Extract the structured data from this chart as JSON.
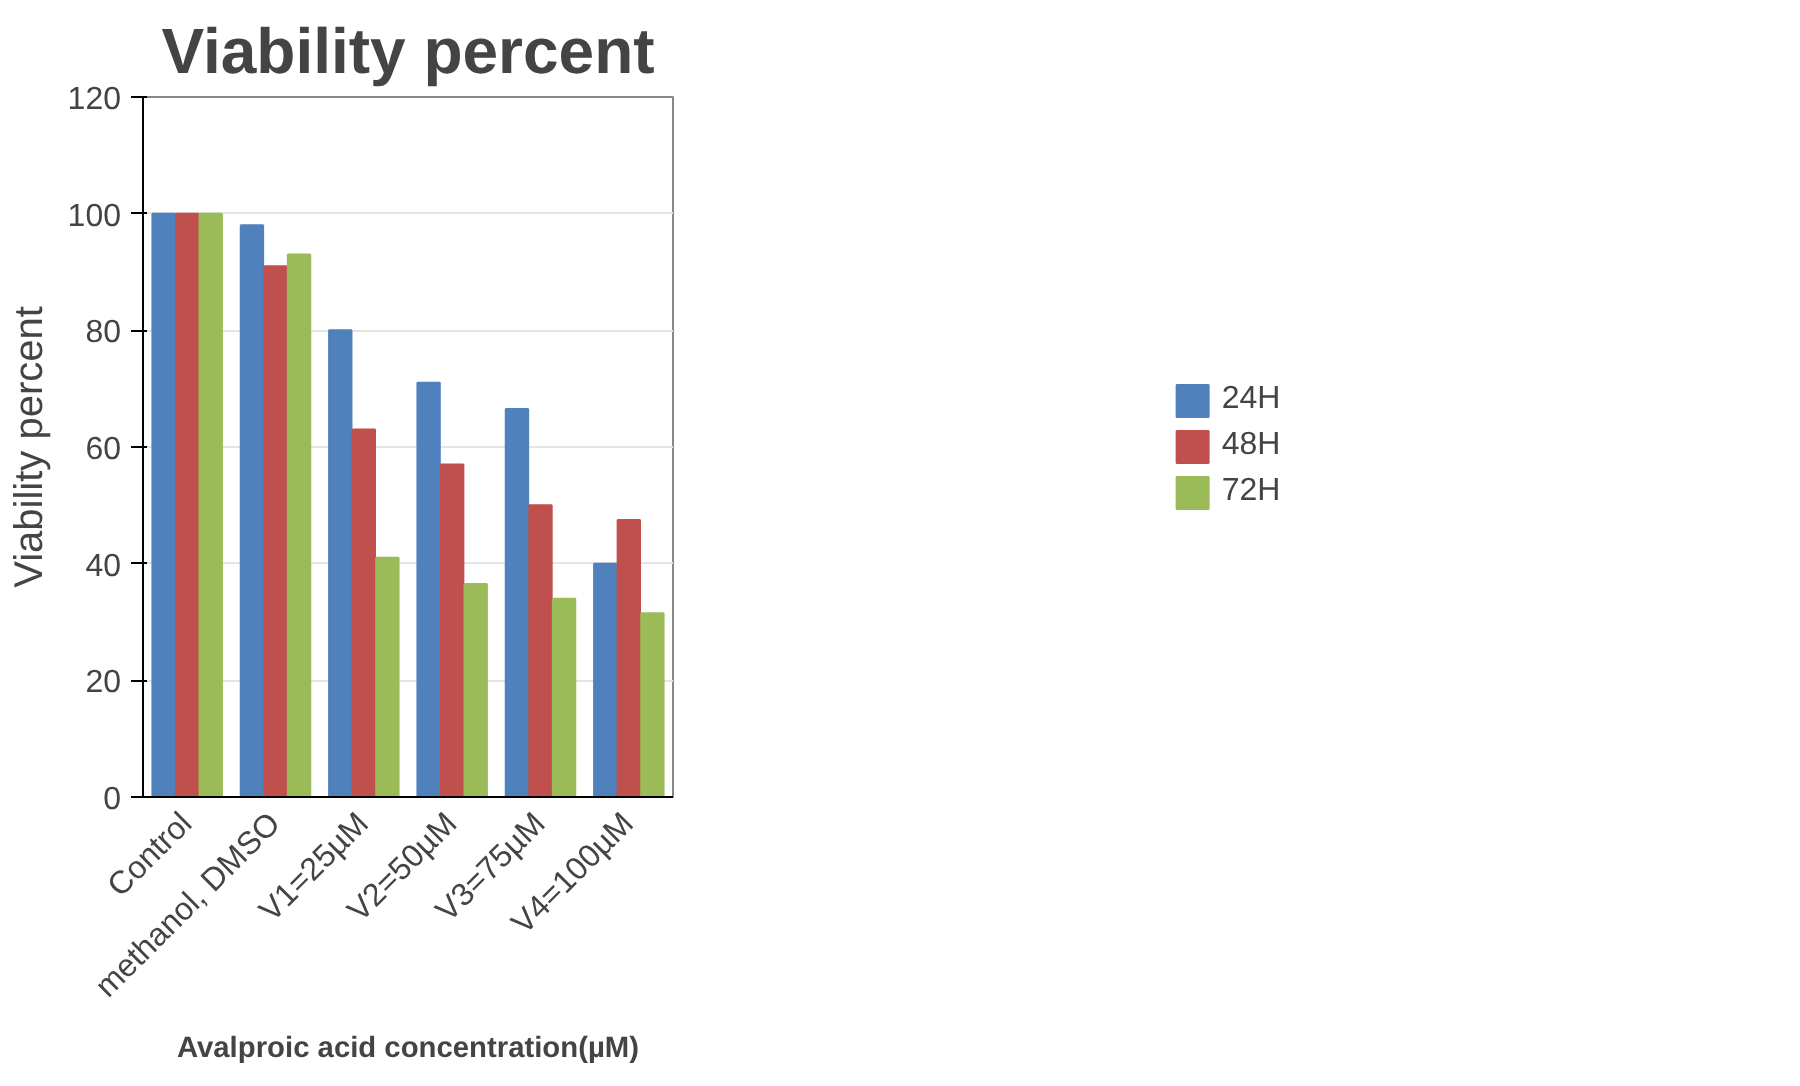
{
  "chart_data": {
    "type": "bar",
    "title": "Viability percent",
    "xlabel": "Avalproic acid concentration(µM)",
    "ylabel": "Viability percent",
    "categories": [
      "Control",
      "methanol, DMSO",
      "V1=25µM",
      "V2=50µM",
      "V3=75µM",
      "V4=100µM"
    ],
    "series": [
      {
        "name": "24H",
        "color": "#4f81bd",
        "values": [
          100,
          98,
          80,
          71,
          66.5,
          40
        ]
      },
      {
        "name": "48H",
        "color": "#c0504d",
        "values": [
          100,
          91,
          63,
          57,
          50,
          47.5
        ]
      },
      {
        "name": "72H",
        "color": "#9bbb59",
        "values": [
          100,
          93,
          41,
          36.5,
          34,
          31.5
        ]
      }
    ],
    "ylim": [
      0,
      120
    ],
    "yticks": [
      0,
      20,
      40,
      60,
      80,
      100,
      120
    ],
    "grid": "y",
    "legend": "right"
  }
}
